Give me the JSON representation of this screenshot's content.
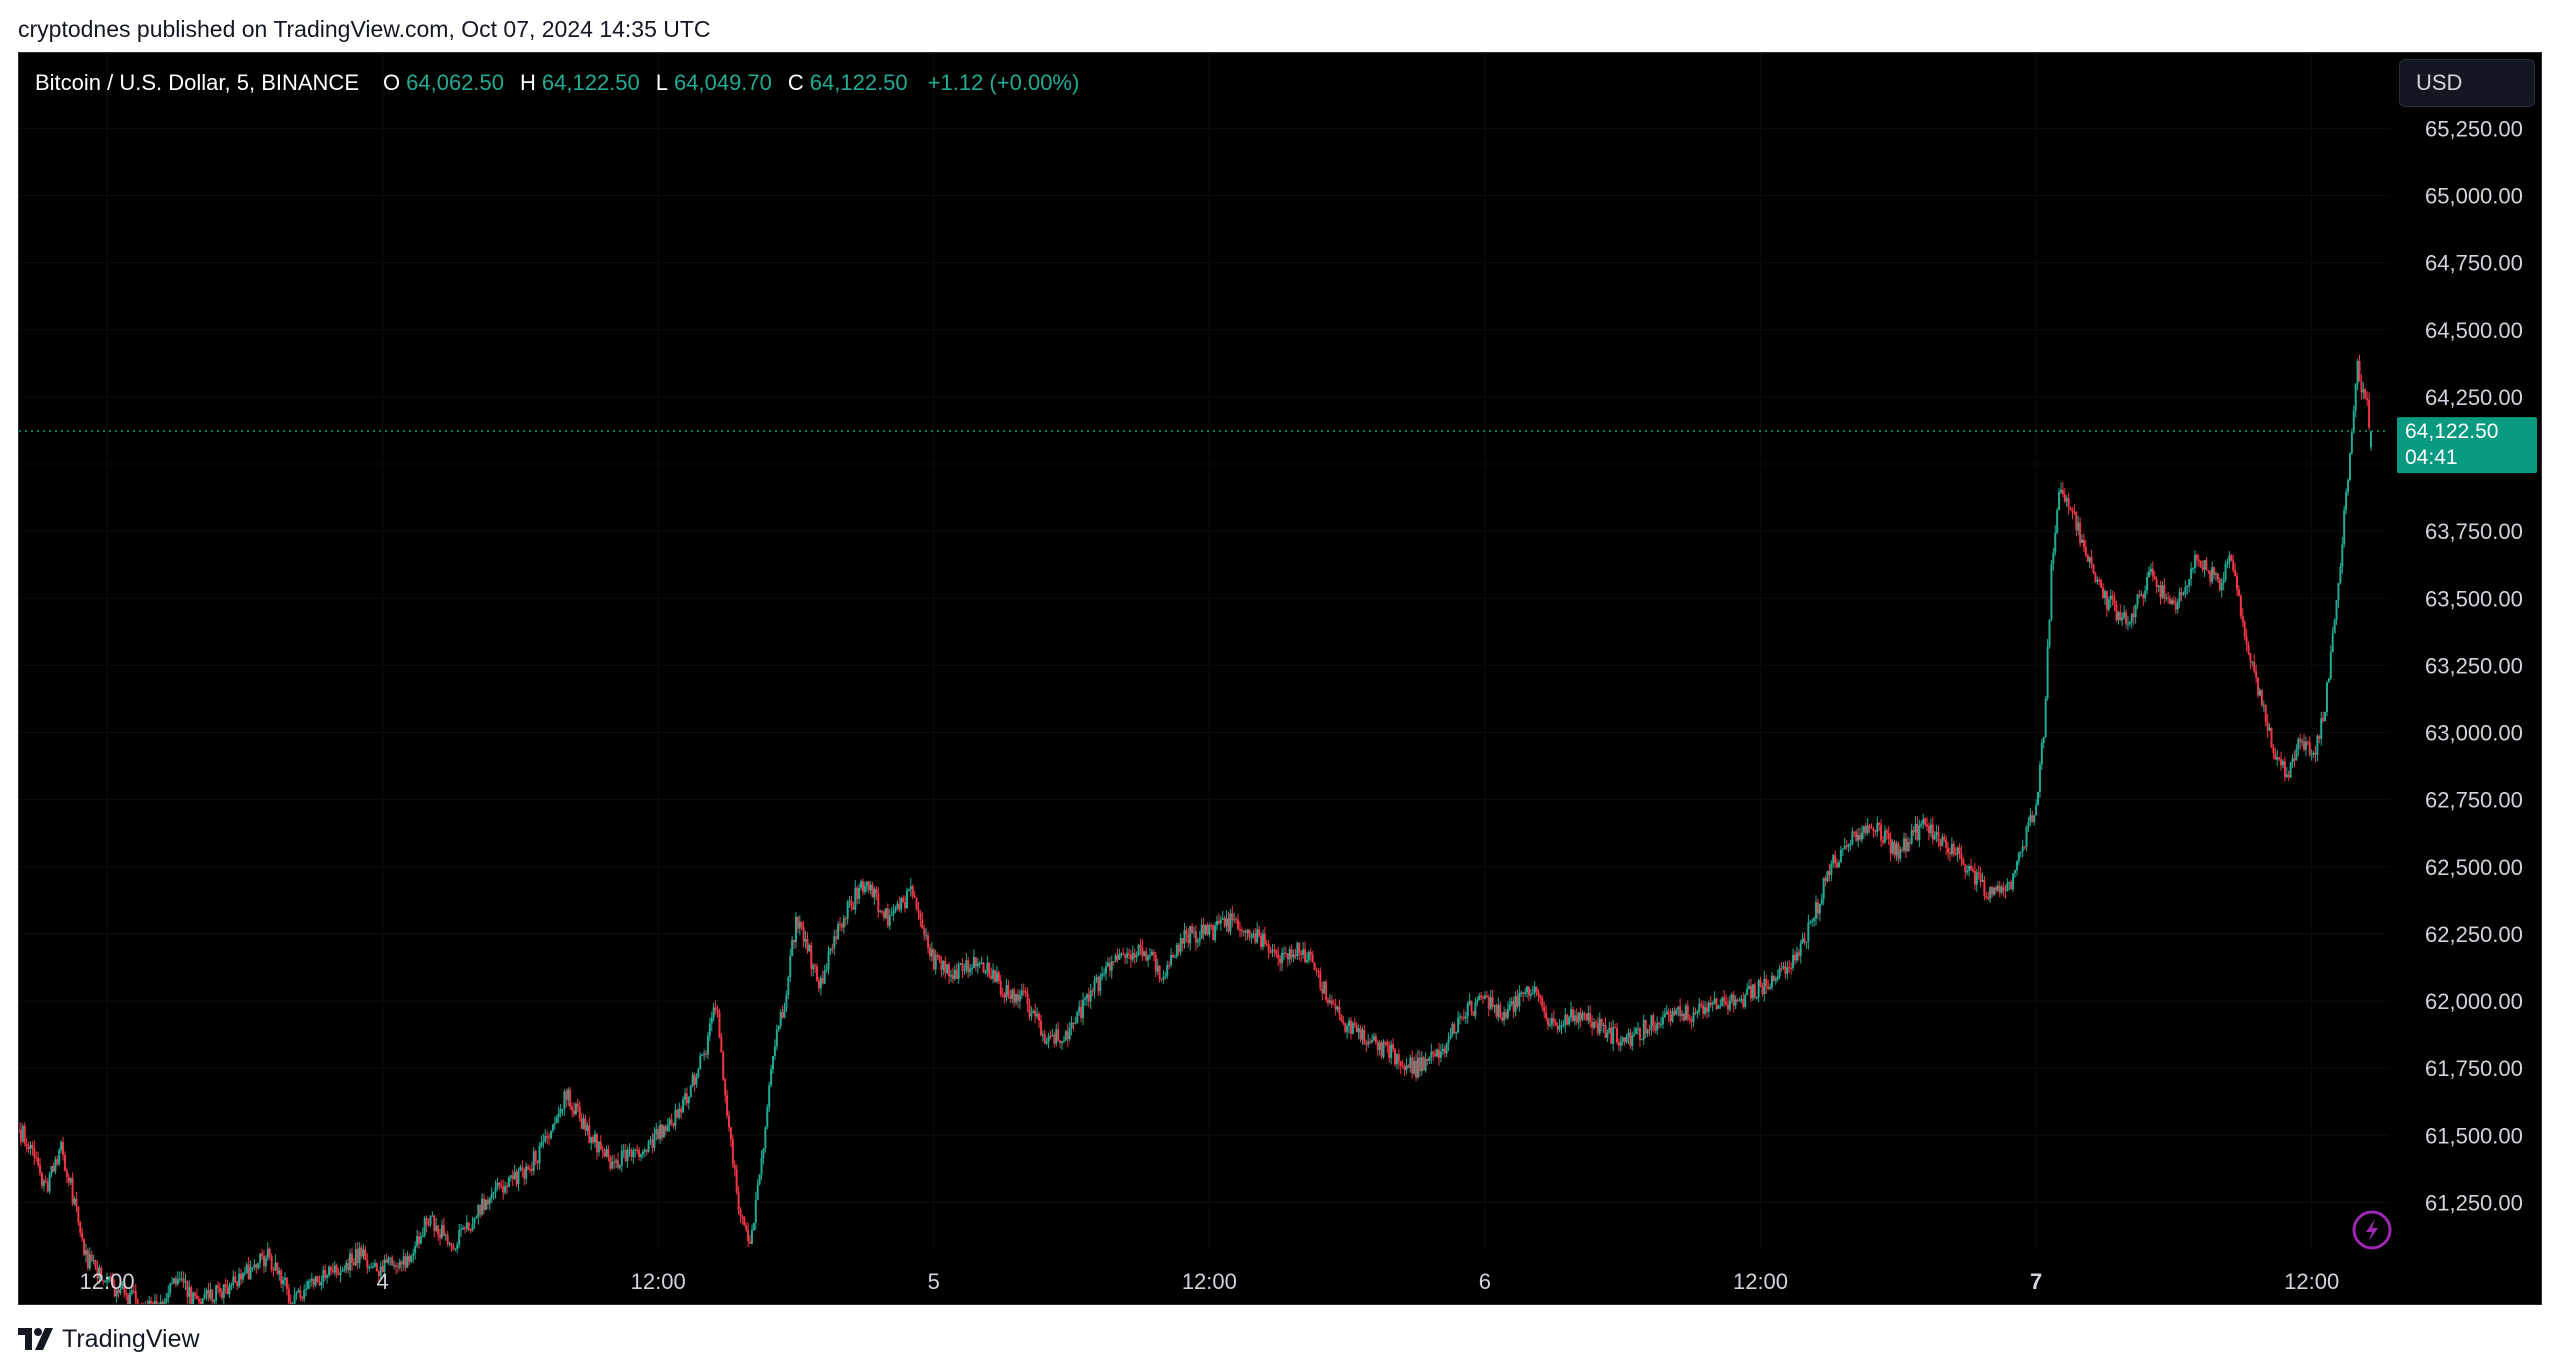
{
  "publication": {
    "line": "cryptodnes published on TradingView.com, Oct 07, 2024 14:35 UTC"
  },
  "legend": {
    "symbol": "Bitcoin / U.S. Dollar, 5, BINANCE",
    "open_label": "O",
    "open": "64,062.50",
    "high_label": "H",
    "high": "64,122.50",
    "low_label": "L",
    "low": "64,049.70",
    "close_label": "C",
    "close": "64,122.50",
    "change": "+1.12 (+0.00%)"
  },
  "currency_button": {
    "label": "USD"
  },
  "price_tag": {
    "price": "64,122.50",
    "countdown": "04:41"
  },
  "footer": {
    "brand": "TradingView",
    "logo_icon": "tradingview-logo-icon"
  },
  "colors": {
    "background": "#000000",
    "up": "#22ab94",
    "down": "#f23645",
    "price_tag": "#089981",
    "axis_text": "#d1d4dc",
    "bolt_icon": "#9c27b0"
  },
  "chart_data": {
    "type": "candlestick",
    "interval": "5",
    "exchange": "BINANCE",
    "ylim": [
      61025,
      65360
    ],
    "y_ticks": [
      61250,
      61500,
      61750,
      62000,
      62250,
      62500,
      62750,
      63000,
      63250,
      63500,
      63750,
      64000,
      64250,
      64500,
      64750,
      65000,
      65250
    ],
    "y_tick_labels": [
      "61,250.00",
      "61,500.00",
      "61,750.00",
      "62,000.00",
      "62,250.00",
      "62,500.00",
      "62,750.00",
      "63,000.00",
      "63,250.00",
      "63,500.00",
      "63,750.00",
      "",
      "64,250.00",
      "64,500.00",
      "64,750.00",
      "65,000.00",
      "65,250.00"
    ],
    "x_ticks": [
      {
        "at": "2024-10-03 12:00",
        "label": "12:00",
        "bold": false
      },
      {
        "at": "2024-10-04 00:00",
        "label": "4",
        "bold": false
      },
      {
        "at": "2024-10-04 12:00",
        "label": "12:00",
        "bold": false
      },
      {
        "at": "2024-10-05 00:00",
        "label": "5",
        "bold": false
      },
      {
        "at": "2024-10-05 12:00",
        "label": "12:00",
        "bold": false
      },
      {
        "at": "2024-10-06 00:00",
        "label": "6",
        "bold": false
      },
      {
        "at": "2024-10-06 12:00",
        "label": "12:00",
        "bold": false
      },
      {
        "at": "2024-10-07 00:00",
        "label": "7",
        "bold": true
      },
      {
        "at": "2024-10-07 12:00",
        "label": "12:00",
        "bold": false
      }
    ],
    "last_price": 64122.5,
    "series": [
      {
        "points": [
          [
            "2024-10-03 08:10",
            61520
          ],
          [
            "2024-10-03 08:40",
            61460
          ],
          [
            "2024-10-03 09:20",
            61300
          ],
          [
            "2024-10-03 10:00",
            61450
          ],
          [
            "2024-10-03 10:30",
            61280
          ],
          [
            "2024-10-03 11:00",
            61050
          ],
          [
            "2024-10-03 12:00",
            60950
          ],
          [
            "2024-10-03 13:00",
            60900
          ],
          [
            "2024-10-03 14:00",
            60850
          ],
          [
            "2024-10-03 15:00",
            60950
          ],
          [
            "2024-10-03 16:00",
            60880
          ],
          [
            "2024-10-03 17:00",
            60920
          ],
          [
            "2024-10-03 18:00",
            60980
          ],
          [
            "2024-10-03 19:00",
            61050
          ],
          [
            "2024-10-03 20:00",
            60900
          ],
          [
            "2024-10-03 21:00",
            60950
          ],
          [
            "2024-10-03 22:00",
            61000
          ],
          [
            "2024-10-03 23:00",
            61050
          ],
          [
            "2024-10-04 00:00",
            61000
          ],
          [
            "2024-10-04 01:00",
            61030
          ],
          [
            "2024-10-04 02:00",
            61200
          ],
          [
            "2024-10-04 03:00",
            61080
          ],
          [
            "2024-10-04 04:00",
            61200
          ],
          [
            "2024-10-04 05:00",
            61300
          ],
          [
            "2024-10-04 06:00",
            61350
          ],
          [
            "2024-10-04 07:00",
            61450
          ],
          [
            "2024-10-04 08:00",
            61650
          ],
          [
            "2024-10-04 09:00",
            61500
          ],
          [
            "2024-10-04 10:00",
            61400
          ],
          [
            "2024-10-04 11:00",
            61420
          ],
          [
            "2024-10-04 12:00",
            61500
          ],
          [
            "2024-10-04 13:00",
            61600
          ],
          [
            "2024-10-04 14:00",
            61800
          ],
          [
            "2024-10-04 14:30",
            62000
          ],
          [
            "2024-10-04 15:00",
            61600
          ],
          [
            "2024-10-04 15:30",
            61250
          ],
          [
            "2024-10-04 16:00",
            61100
          ],
          [
            "2024-10-04 16:30",
            61400
          ],
          [
            "2024-10-04 17:00",
            61800
          ],
          [
            "2024-10-04 17:30",
            62000
          ],
          [
            "2024-10-04 18:00",
            62300
          ],
          [
            "2024-10-04 18:30",
            62200
          ],
          [
            "2024-10-04 19:00",
            62050
          ],
          [
            "2024-10-04 20:00",
            62300
          ],
          [
            "2024-10-04 21:00",
            62450
          ],
          [
            "2024-10-04 22:00",
            62300
          ],
          [
            "2024-10-04 23:00",
            62400
          ],
          [
            "2024-10-05 00:00",
            62150
          ],
          [
            "2024-10-05 01:00",
            62100
          ],
          [
            "2024-10-05 02:00",
            62150
          ],
          [
            "2024-10-05 03:00",
            62050
          ],
          [
            "2024-10-05 04:00",
            62000
          ],
          [
            "2024-10-05 05:00",
            61850
          ],
          [
            "2024-10-05 06:00",
            61900
          ],
          [
            "2024-10-05 07:00",
            62050
          ],
          [
            "2024-10-05 08:00",
            62150
          ],
          [
            "2024-10-05 09:00",
            62200
          ],
          [
            "2024-10-05 10:00",
            62100
          ],
          [
            "2024-10-05 11:00",
            62250
          ],
          [
            "2024-10-05 12:00",
            62250
          ],
          [
            "2024-10-05 13:00",
            62300
          ],
          [
            "2024-10-05 14:00",
            62250
          ],
          [
            "2024-10-05 15:00",
            62150
          ],
          [
            "2024-10-05 16:00",
            62200
          ],
          [
            "2024-10-05 17:00",
            62050
          ],
          [
            "2024-10-05 18:00",
            61900
          ],
          [
            "2024-10-05 19:00",
            61850
          ],
          [
            "2024-10-05 20:00",
            61800
          ],
          [
            "2024-10-05 21:00",
            61750
          ],
          [
            "2024-10-05 22:00",
            61800
          ],
          [
            "2024-10-05 23:00",
            61950
          ],
          [
            "2024-10-06 00:00",
            62000
          ],
          [
            "2024-10-06 01:00",
            61950
          ],
          [
            "2024-10-06 02:00",
            62050
          ],
          [
            "2024-10-06 03:00",
            61900
          ],
          [
            "2024-10-06 04:00",
            61950
          ],
          [
            "2024-10-06 05:00",
            61900
          ],
          [
            "2024-10-06 06:00",
            61850
          ],
          [
            "2024-10-06 07:00",
            61900
          ],
          [
            "2024-10-06 08:00",
            61950
          ],
          [
            "2024-10-06 09:00",
            61950
          ],
          [
            "2024-10-06 10:00",
            62000
          ],
          [
            "2024-10-06 11:00",
            62000
          ],
          [
            "2024-10-06 12:00",
            62050
          ],
          [
            "2024-10-06 13:00",
            62100
          ],
          [
            "2024-10-06 14:00",
            62250
          ],
          [
            "2024-10-06 14:30",
            62350
          ],
          [
            "2024-10-06 15:00",
            62500
          ],
          [
            "2024-10-06 16:00",
            62600
          ],
          [
            "2024-10-06 17:00",
            62650
          ],
          [
            "2024-10-06 18:00",
            62550
          ],
          [
            "2024-10-06 19:00",
            62650
          ],
          [
            "2024-10-06 20:00",
            62600
          ],
          [
            "2024-10-06 21:00",
            62500
          ],
          [
            "2024-10-06 22:00",
            62400
          ],
          [
            "2024-10-06 23:00",
            62450
          ],
          [
            "2024-10-07 00:00",
            62750
          ],
          [
            "2024-10-07 00:20",
            63000
          ],
          [
            "2024-10-07 00:40",
            63600
          ],
          [
            "2024-10-07 01:00",
            63900
          ],
          [
            "2024-10-07 01:30",
            63850
          ],
          [
            "2024-10-07 02:00",
            63700
          ],
          [
            "2024-10-07 03:00",
            63500
          ],
          [
            "2024-10-07 04:00",
            63400
          ],
          [
            "2024-10-07 05:00",
            63600
          ],
          [
            "2024-10-07 06:00",
            63450
          ],
          [
            "2024-10-07 07:00",
            63650
          ],
          [
            "2024-10-07 08:00",
            63550
          ],
          [
            "2024-10-07 08:30",
            63650
          ],
          [
            "2024-10-07 09:00",
            63400
          ],
          [
            "2024-10-07 09:30",
            63200
          ],
          [
            "2024-10-07 10:00",
            63050
          ],
          [
            "2024-10-07 10:30",
            62900
          ],
          [
            "2024-10-07 11:00",
            62850
          ],
          [
            "2024-10-07 11:30",
            63000
          ],
          [
            "2024-10-07 12:00",
            62900
          ],
          [
            "2024-10-07 12:30",
            63050
          ],
          [
            "2024-10-07 13:00",
            63400
          ],
          [
            "2024-10-07 13:30",
            63900
          ],
          [
            "2024-10-07 14:00",
            64350
          ],
          [
            "2024-10-07 14:20",
            64250
          ],
          [
            "2024-10-07 14:35",
            64122.5
          ]
        ]
      }
    ]
  }
}
